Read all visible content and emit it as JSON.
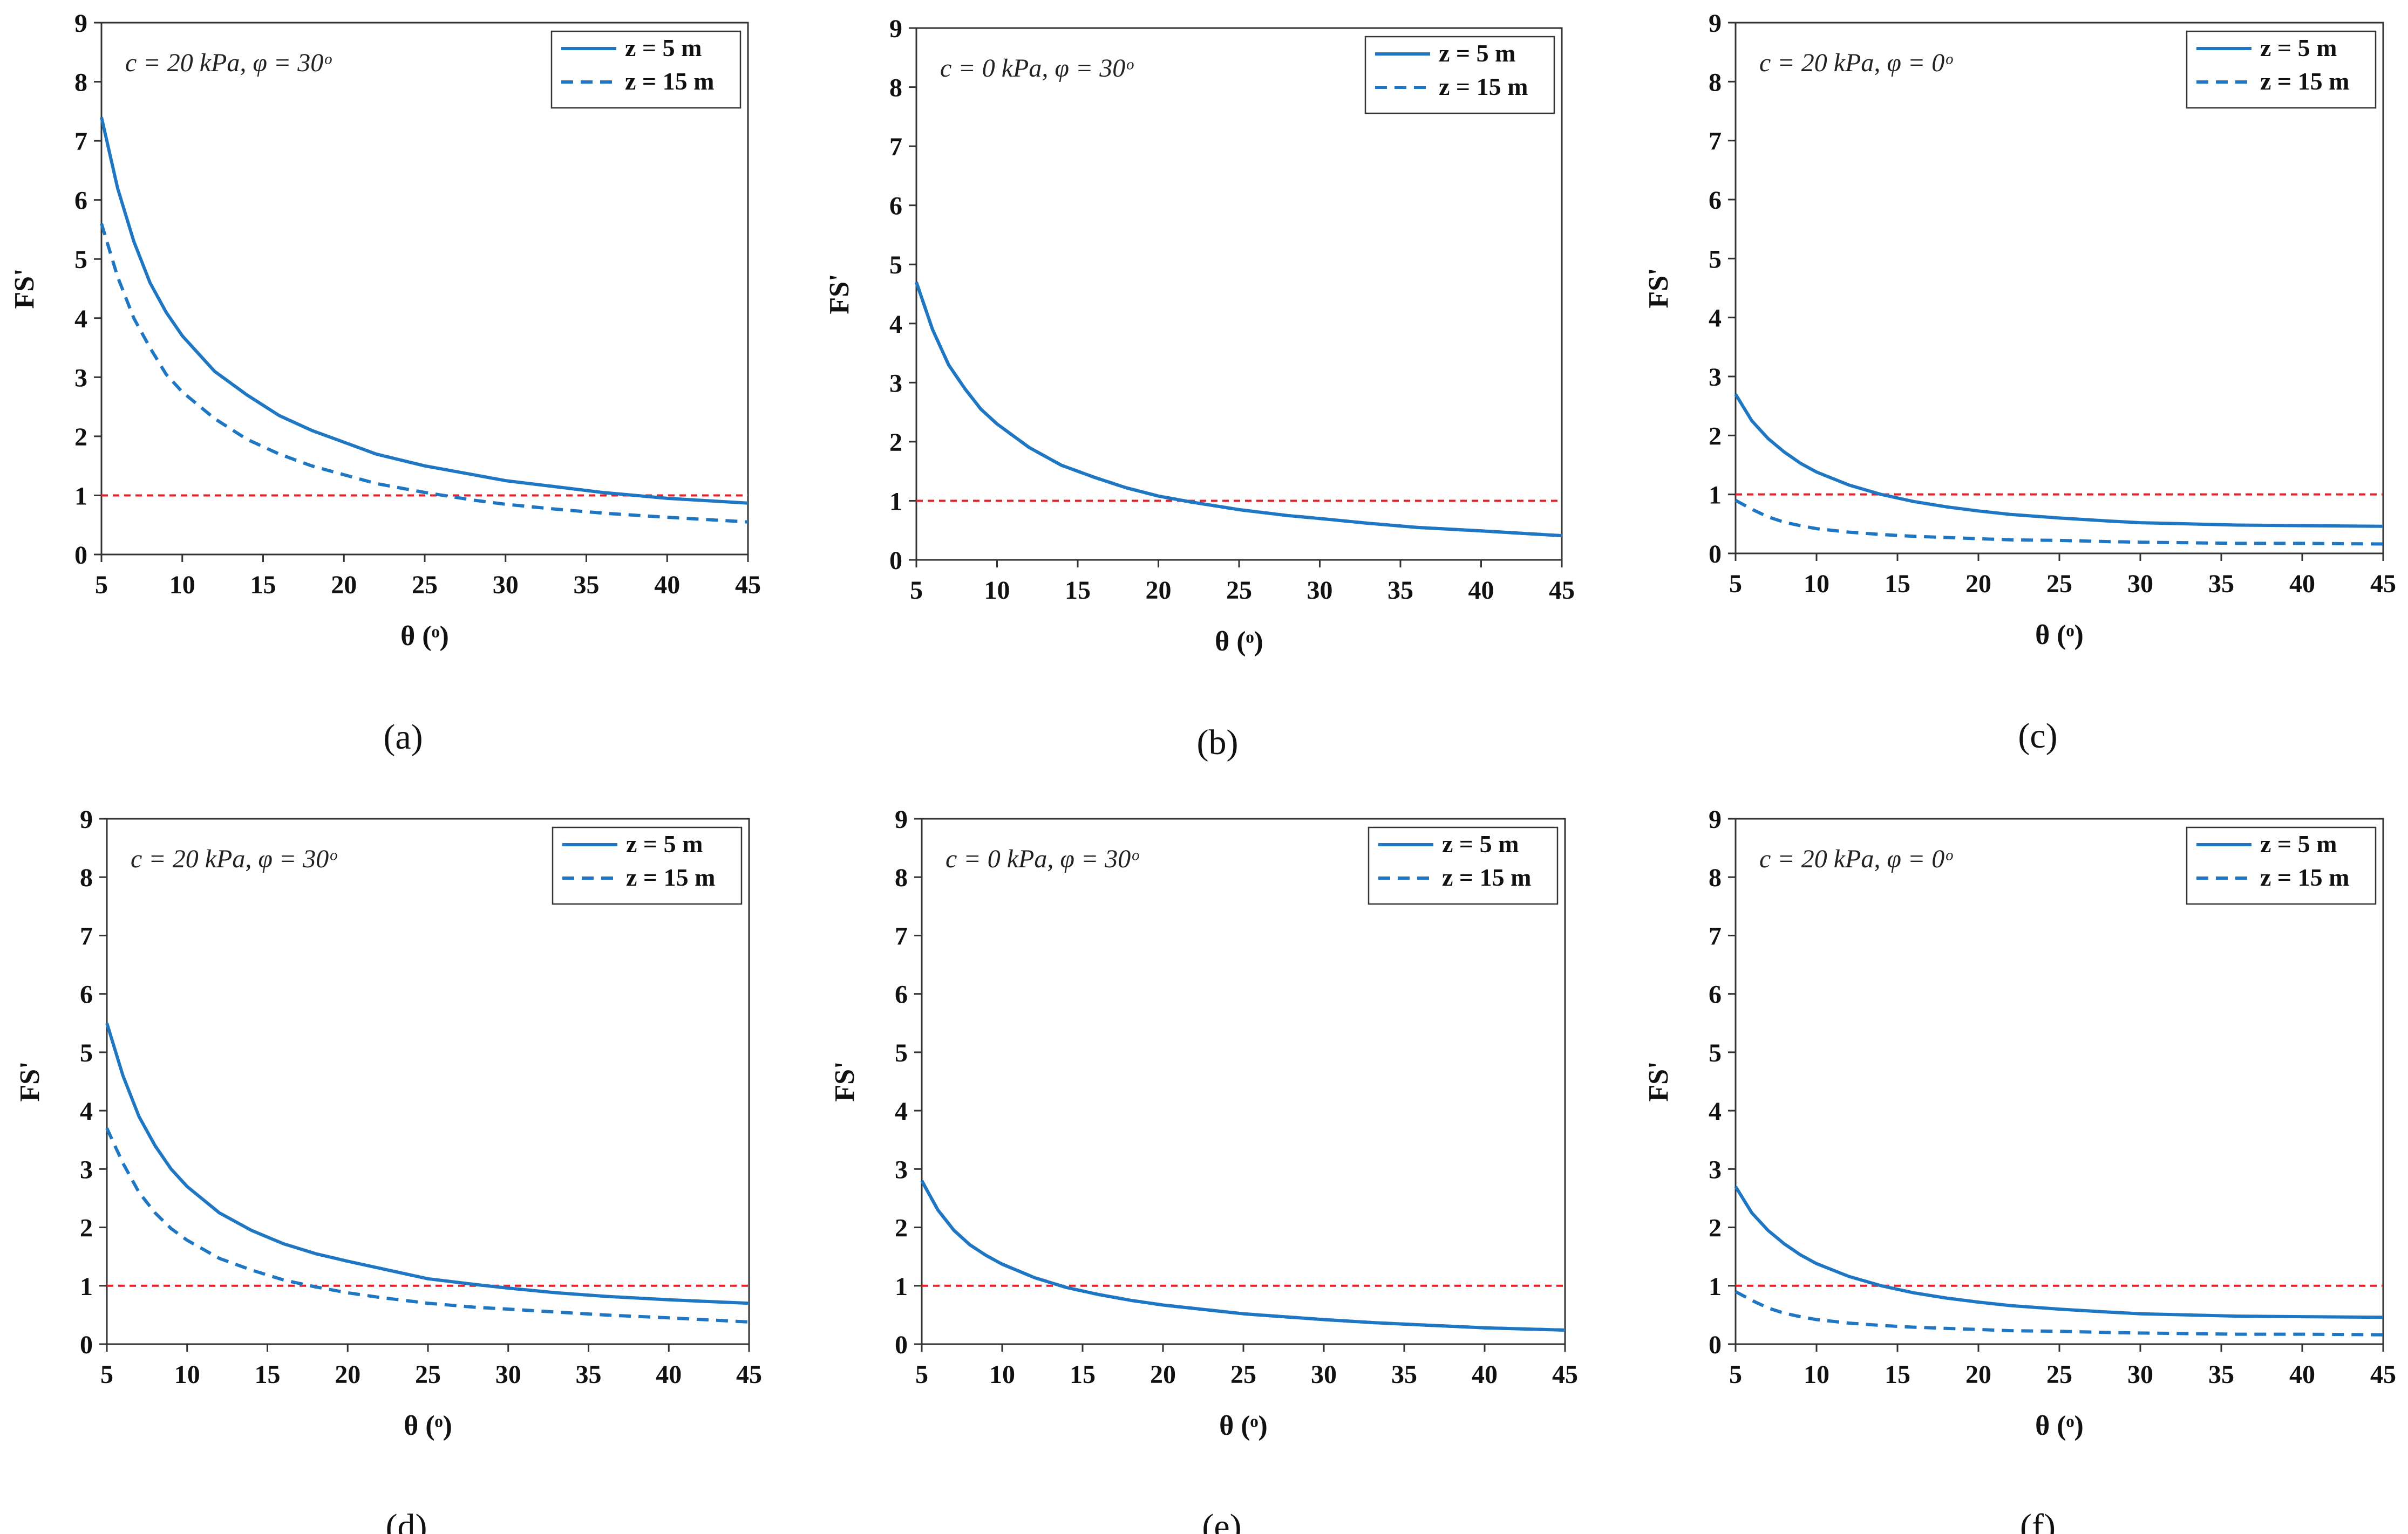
{
  "figure": {
    "series_color": "#1f77c4",
    "threshold_color": "#e8202a"
  },
  "chart_data": [
    {
      "type": "line",
      "panel": "a",
      "panel_label": "(a)",
      "annotation": "c = 20 kPa, φ = 30ᵒ",
      "xlabel": "θ (ᵒ)",
      "ylabel": "FS'",
      "xlim": [
        5,
        45
      ],
      "ylim": [
        0,
        9
      ],
      "xticks": [
        5,
        10,
        15,
        20,
        25,
        30,
        35,
        40,
        45
      ],
      "yticks": [
        0,
        1,
        2,
        3,
        4,
        5,
        6,
        7,
        8,
        9
      ],
      "legend_position": "top-right",
      "threshold": 1,
      "series": [
        {
          "name": "z = 5 m",
          "style": "solid",
          "x": [
            5,
            6,
            7,
            8,
            9,
            10,
            12,
            14,
            16,
            18,
            20,
            22,
            25,
            28,
            30,
            33,
            36,
            40,
            45
          ],
          "values": [
            7.4,
            6.2,
            5.3,
            4.6,
            4.1,
            3.7,
            3.1,
            2.7,
            2.35,
            2.1,
            1.9,
            1.7,
            1.5,
            1.35,
            1.25,
            1.15,
            1.05,
            0.95,
            0.87
          ]
        },
        {
          "name": "z = 15 m",
          "style": "dashed",
          "x": [
            5,
            6,
            7,
            8,
            9,
            10,
            12,
            14,
            16,
            18,
            20,
            22,
            25,
            28,
            30,
            33,
            36,
            40,
            45
          ],
          "values": [
            5.6,
            4.7,
            4.0,
            3.5,
            3.05,
            2.75,
            2.3,
            1.95,
            1.7,
            1.5,
            1.35,
            1.2,
            1.05,
            0.92,
            0.85,
            0.77,
            0.7,
            0.63,
            0.55
          ]
        }
      ]
    },
    {
      "type": "line",
      "panel": "b",
      "panel_label": "(b)",
      "annotation": "c = 0 kPa, φ = 30ᵒ",
      "xlabel": "θ (ᵒ)",
      "ylabel": "FS'",
      "xlim": [
        5,
        45
      ],
      "ylim": [
        0,
        9
      ],
      "xticks": [
        5,
        10,
        15,
        20,
        25,
        30,
        35,
        40,
        45
      ],
      "yticks": [
        0,
        1,
        2,
        3,
        4,
        5,
        6,
        7,
        8,
        9
      ],
      "legend_position": "top-right",
      "threshold": 1,
      "series": [
        {
          "name": "z = 5 m",
          "style": "solid",
          "x": [
            5,
            6,
            7,
            8,
            9,
            10,
            12,
            14,
            16,
            18,
            20,
            22,
            25,
            28,
            30,
            33,
            36,
            40,
            45
          ],
          "values": [
            4.7,
            3.9,
            3.3,
            2.9,
            2.55,
            2.3,
            1.9,
            1.6,
            1.4,
            1.22,
            1.08,
            0.98,
            0.85,
            0.75,
            0.7,
            0.62,
            0.55,
            0.49,
            0.41
          ]
        },
        {
          "name": "z = 15 m",
          "style": "dashed",
          "x": [
            5,
            6,
            7,
            8,
            9,
            10,
            12,
            14,
            16,
            18,
            20,
            22,
            25,
            28,
            30,
            33,
            36,
            40,
            45
          ],
          "values": [
            4.7,
            3.9,
            3.3,
            2.9,
            2.55,
            2.3,
            1.9,
            1.6,
            1.4,
            1.22,
            1.08,
            0.98,
            0.85,
            0.75,
            0.7,
            0.62,
            0.55,
            0.49,
            0.41
          ]
        }
      ]
    },
    {
      "type": "line",
      "panel": "c",
      "panel_label": "(c)",
      "annotation": "c = 20 kPa, φ = 0ᵒ",
      "xlabel": "θ (ᵒ)",
      "ylabel": "FS'",
      "xlim": [
        5,
        45
      ],
      "ylim": [
        0,
        9
      ],
      "xticks": [
        5,
        10,
        15,
        20,
        25,
        30,
        35,
        40,
        45
      ],
      "yticks": [
        0,
        1,
        2,
        3,
        4,
        5,
        6,
        7,
        8,
        9
      ],
      "legend_position": "top-right",
      "threshold": 1,
      "series": [
        {
          "name": "z = 5 m",
          "style": "solid",
          "x": [
            5,
            6,
            7,
            8,
            9,
            10,
            12,
            14,
            16,
            18,
            20,
            22,
            25,
            28,
            30,
            33,
            36,
            40,
            45
          ],
          "values": [
            2.7,
            2.25,
            1.95,
            1.72,
            1.53,
            1.38,
            1.16,
            1.0,
            0.88,
            0.79,
            0.72,
            0.66,
            0.6,
            0.55,
            0.52,
            0.5,
            0.48,
            0.47,
            0.46
          ]
        },
        {
          "name": "z = 15 m",
          "style": "dashed",
          "x": [
            5,
            6,
            7,
            8,
            9,
            10,
            12,
            14,
            16,
            18,
            20,
            22,
            25,
            28,
            30,
            33,
            36,
            40,
            45
          ],
          "values": [
            0.9,
            0.75,
            0.62,
            0.53,
            0.47,
            0.42,
            0.36,
            0.32,
            0.29,
            0.27,
            0.25,
            0.23,
            0.22,
            0.2,
            0.19,
            0.18,
            0.17,
            0.17,
            0.16
          ]
        }
      ]
    },
    {
      "type": "line",
      "panel": "d",
      "panel_label": "(d)",
      "annotation": "c = 20 kPa, φ = 30ᵒ",
      "xlabel": "θ (ᵒ)",
      "ylabel": "FS'",
      "xlim": [
        5,
        45
      ],
      "ylim": [
        0,
        9
      ],
      "xticks": [
        5,
        10,
        15,
        20,
        25,
        30,
        35,
        40,
        45
      ],
      "yticks": [
        0,
        1,
        2,
        3,
        4,
        5,
        6,
        7,
        8,
        9
      ],
      "legend_position": "top-right",
      "threshold": 1,
      "series": [
        {
          "name": "z = 5 m",
          "style": "solid",
          "x": [
            5,
            6,
            7,
            8,
            9,
            10,
            12,
            14,
            16,
            18,
            20,
            22,
            25,
            28,
            30,
            33,
            36,
            40,
            45
          ],
          "values": [
            5.5,
            4.6,
            3.9,
            3.4,
            3.0,
            2.7,
            2.25,
            1.95,
            1.72,
            1.55,
            1.42,
            1.3,
            1.12,
            1.02,
            0.96,
            0.88,
            0.82,
            0.76,
            0.7
          ]
        },
        {
          "name": "z = 15 m",
          "style": "dashed",
          "x": [
            5,
            6,
            7,
            8,
            9,
            10,
            12,
            14,
            16,
            18,
            20,
            22,
            25,
            28,
            30,
            33,
            36,
            40,
            45
          ],
          "values": [
            3.7,
            3.1,
            2.6,
            2.25,
            1.98,
            1.78,
            1.47,
            1.27,
            1.1,
            0.98,
            0.88,
            0.8,
            0.7,
            0.63,
            0.6,
            0.55,
            0.5,
            0.45,
            0.38
          ]
        }
      ]
    },
    {
      "type": "line",
      "panel": "e",
      "panel_label": "(e)",
      "annotation": "c = 0 kPa, φ = 30ᵒ",
      "xlabel": "θ (ᵒ)",
      "ylabel": "FS'",
      "xlim": [
        5,
        45
      ],
      "ylim": [
        0,
        9
      ],
      "xticks": [
        5,
        10,
        15,
        20,
        25,
        30,
        35,
        40,
        45
      ],
      "yticks": [
        0,
        1,
        2,
        3,
        4,
        5,
        6,
        7,
        8,
        9
      ],
      "legend_position": "top-right",
      "threshold": 1,
      "series": [
        {
          "name": "z = 5 m",
          "style": "solid",
          "x": [
            5,
            6,
            7,
            8,
            9,
            10,
            12,
            14,
            16,
            18,
            20,
            22,
            25,
            28,
            30,
            33,
            36,
            40,
            45
          ],
          "values": [
            2.8,
            2.3,
            1.95,
            1.7,
            1.52,
            1.37,
            1.14,
            0.97,
            0.85,
            0.75,
            0.67,
            0.61,
            0.52,
            0.46,
            0.42,
            0.37,
            0.33,
            0.28,
            0.24
          ]
        },
        {
          "name": "z = 15 m",
          "style": "dashed",
          "x": [
            5,
            6,
            7,
            8,
            9,
            10,
            12,
            14,
            16,
            18,
            20,
            22,
            25,
            28,
            30,
            33,
            36,
            40,
            45
          ],
          "values": [
            2.8,
            2.3,
            1.95,
            1.7,
            1.52,
            1.37,
            1.14,
            0.97,
            0.85,
            0.75,
            0.67,
            0.61,
            0.52,
            0.46,
            0.42,
            0.37,
            0.33,
            0.28,
            0.24
          ]
        }
      ]
    },
    {
      "type": "line",
      "panel": "f",
      "panel_label": "(f)",
      "annotation": "c = 20 kPa, φ = 0ᵒ",
      "xlabel": "θ (ᵒ)",
      "ylabel": "FS'",
      "xlim": [
        5,
        45
      ],
      "ylim": [
        0,
        9
      ],
      "xticks": [
        5,
        10,
        15,
        20,
        25,
        30,
        35,
        40,
        45
      ],
      "yticks": [
        0,
        1,
        2,
        3,
        4,
        5,
        6,
        7,
        8,
        9
      ],
      "legend_position": "top-right",
      "threshold": 1,
      "series": [
        {
          "name": "z = 5 m",
          "style": "solid",
          "x": [
            5,
            6,
            7,
            8,
            9,
            10,
            12,
            14,
            16,
            18,
            20,
            22,
            25,
            28,
            30,
            33,
            36,
            40,
            45
          ],
          "values": [
            2.7,
            2.25,
            1.95,
            1.72,
            1.53,
            1.38,
            1.16,
            1.0,
            0.88,
            0.79,
            0.72,
            0.66,
            0.6,
            0.55,
            0.52,
            0.5,
            0.48,
            0.47,
            0.46
          ]
        },
        {
          "name": "z = 15 m",
          "style": "dashed",
          "x": [
            5,
            6,
            7,
            8,
            9,
            10,
            12,
            14,
            16,
            18,
            20,
            22,
            25,
            28,
            30,
            33,
            36,
            40,
            45
          ],
          "values": [
            0.9,
            0.75,
            0.62,
            0.53,
            0.47,
            0.42,
            0.36,
            0.32,
            0.29,
            0.27,
            0.25,
            0.23,
            0.22,
            0.2,
            0.19,
            0.18,
            0.17,
            0.17,
            0.16
          ]
        }
      ]
    }
  ]
}
